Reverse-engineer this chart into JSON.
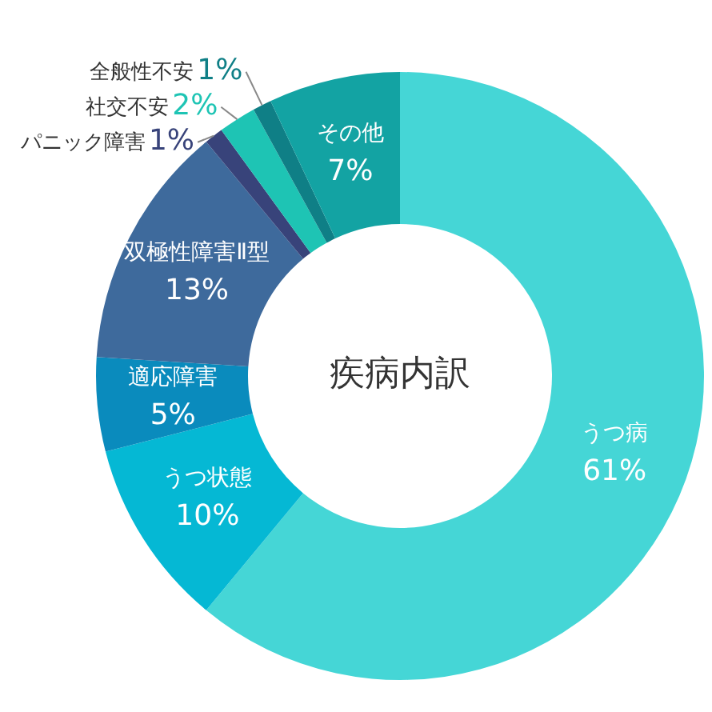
{
  "chart_data": {
    "type": "donut",
    "title": "疾病内訳",
    "categories": [
      "うつ病",
      "うつ状態",
      "適応障害",
      "双極性障害Ⅱ型",
      "パニック障害",
      "社交不安",
      "全般性不安",
      "その他"
    ],
    "values": [
      61,
      10,
      5,
      13,
      1,
      2,
      1,
      7
    ],
    "value_labels": [
      "61%",
      "10%",
      "5%",
      "13%",
      "1%",
      "2%",
      "1%",
      "7%"
    ],
    "colors": [
      "#45d6d6",
      "#05b8d4",
      "#0a8bbd",
      "#3e6a9c",
      "#38437a",
      "#1ec4b4",
      "#0f7f86",
      "#13a3a3"
    ],
    "legend": false
  }
}
